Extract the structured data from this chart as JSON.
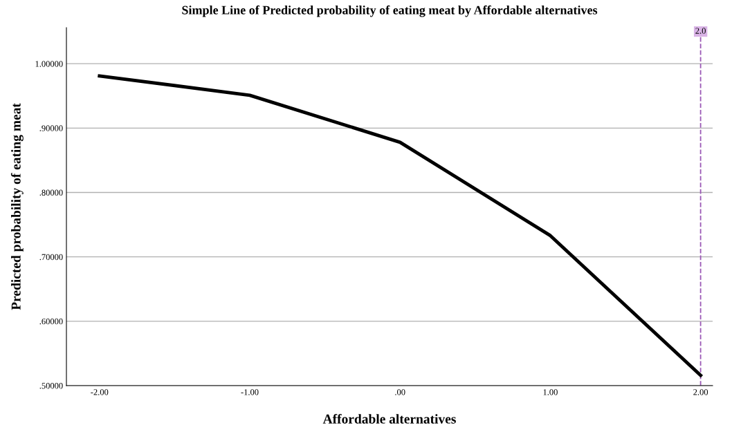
{
  "chart_data": {
    "type": "line",
    "title": "Simple Line of Predicted probability of eating meat by Affordable alternatives",
    "xlabel": "Affordable alternatives",
    "ylabel": "Predicted probability of eating meat",
    "x": [
      -2,
      -1,
      0,
      1,
      2
    ],
    "series": [
      {
        "color": "#000000",
        "values": [
          0.981,
          0.951,
          0.878,
          0.733,
          0.516
        ]
      }
    ],
    "xlim": [
      -2.22,
      2.08
    ],
    "xticks": [
      {
        "value": -2,
        "label": "-2.00"
      },
      {
        "value": -1,
        "label": "-1.00"
      },
      {
        "value": 0,
        "label": ".00"
      },
      {
        "value": 1,
        "label": "1.00"
      },
      {
        "value": 2,
        "label": "2.00"
      }
    ],
    "ylim": [
      0.5,
      1.056
    ],
    "yticks": [
      {
        "value": 0.5,
        "label": ".50000"
      },
      {
        "value": 0.6,
        "label": ".60000"
      },
      {
        "value": 0.7,
        "label": ".70000"
      },
      {
        "value": 0.8,
        "label": ".80000"
      },
      {
        "value": 0.9,
        "label": ".90000"
      },
      {
        "value": 1.0,
        "label": "1.00000"
      }
    ],
    "grid": "y",
    "legend": false,
    "marker": "none",
    "line_style": "solid",
    "ref_lines": [
      {
        "axis": "x",
        "value": 2,
        "label": "2.0",
        "color": "#9b59b6",
        "line_style": "dashed"
      }
    ]
  }
}
